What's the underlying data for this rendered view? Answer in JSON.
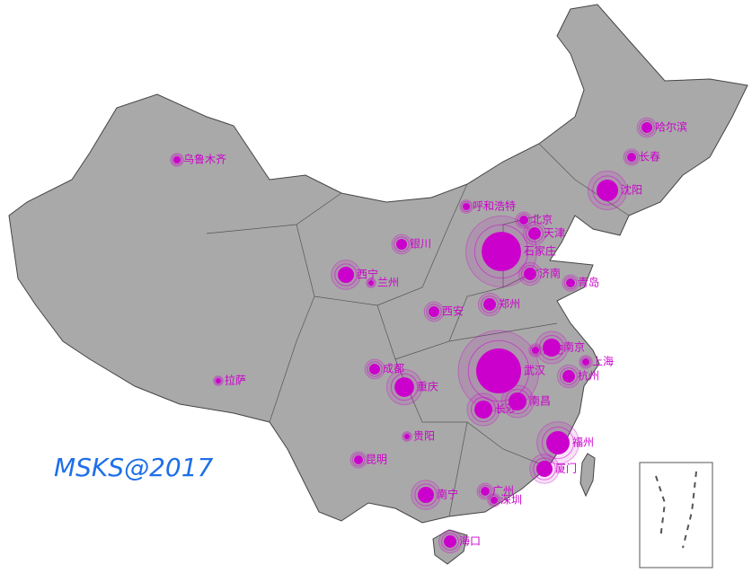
{
  "map": {
    "watermark": "MSKS@2017",
    "color": "#cc00cc",
    "cities": [
      {
        "name": "乌鲁木齐",
        "value": 2.6
      },
      {
        "name": "哈尔滨",
        "value": 5.8
      },
      {
        "name": "长春",
        "value": 4
      },
      {
        "name": "沈阳",
        "value": 23
      },
      {
        "name": "呼和浩特",
        "value": 2.6
      },
      {
        "name": "北京",
        "value": 4
      },
      {
        "name": "天津",
        "value": 7.8
      },
      {
        "name": "石家庄",
        "value": 77
      },
      {
        "name": "银川",
        "value": 5.8
      },
      {
        "name": "西宁",
        "value": 13
      },
      {
        "name": "兰州",
        "value": 1.4
      },
      {
        "name": "济南",
        "value": 7.8
      },
      {
        "name": "青岛",
        "value": 4
      },
      {
        "name": "西安",
        "value": 5.8
      },
      {
        "name": "郑州",
        "value": 7.8
      },
      {
        "name": "合肥",
        "value": 2.6
      },
      {
        "name": "南京",
        "value": 16
      },
      {
        "name": "上海",
        "value": 2.6
      },
      {
        "name": "杭州",
        "value": 7.8
      },
      {
        "name": "武汉",
        "value": 100
      },
      {
        "name": "南昌",
        "value": 16
      },
      {
        "name": "长沙",
        "value": 16
      },
      {
        "name": "成都",
        "value": 5.8
      },
      {
        "name": "重庆",
        "value": 19
      },
      {
        "name": "拉萨",
        "value": 1.4
      },
      {
        "name": "贵阳",
        "value": 1.4
      },
      {
        "name": "福州",
        "value": 27
      },
      {
        "name": "厦门",
        "value": 13
      },
      {
        "name": "昆明",
        "value": 4
      },
      {
        "name": "南宁",
        "value": 13
      },
      {
        "name": "广州",
        "value": 4
      },
      {
        "name": "深圳",
        "value": 2.6
      },
      {
        "name": "海口",
        "value": 7.8
      }
    ]
  }
}
